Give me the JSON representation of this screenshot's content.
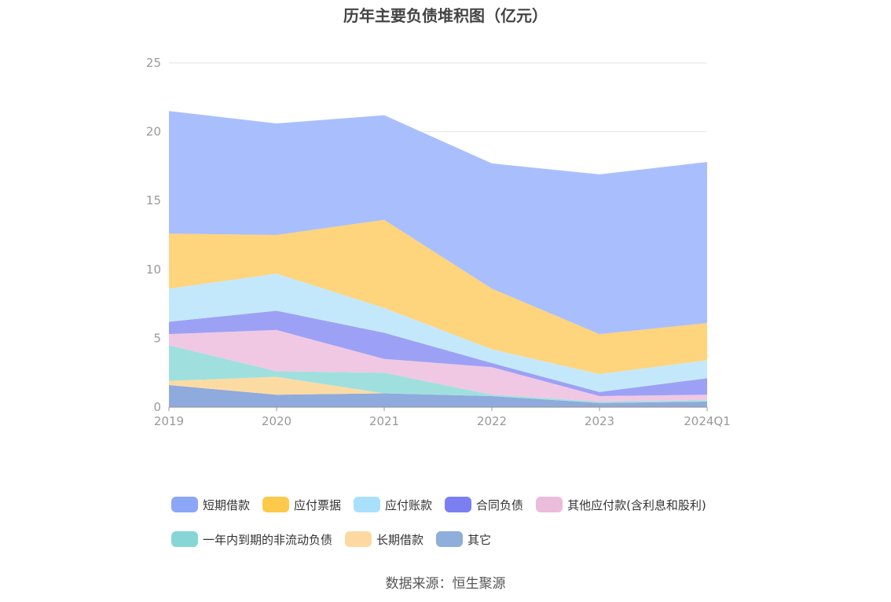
{
  "chart_data": {
    "type": "area",
    "stacked": true,
    "title": "历年主要负债堆积图（亿元）",
    "categories": [
      "2019",
      "2020",
      "2021",
      "2022",
      "2023",
      "2024Q1"
    ],
    "ylim": [
      0,
      25
    ],
    "yticks": [
      0,
      5,
      10,
      15,
      20,
      25
    ],
    "grid": true,
    "legend_position": "bottom",
    "series": [
      {
        "name": "其它",
        "color": "#8faadc",
        "values": [
          1.6,
          0.9,
          1.0,
          0.8,
          0.3,
          0.4
        ]
      },
      {
        "name": "长期借款",
        "color": "#fcdba3",
        "values": [
          0.3,
          1.3,
          0.0,
          0.0,
          0.0,
          0.0
        ]
      },
      {
        "name": "一年内到期的非流动负债",
        "color": "#9fe0df",
        "values": [
          2.6,
          0.4,
          1.5,
          0.1,
          0.1,
          0.1
        ]
      },
      {
        "name": "其他应付款(含利息和股利)",
        "color": "#f0c8e3",
        "values": [
          0.8,
          3.0,
          1.0,
          2.0,
          0.4,
          0.4
        ]
      },
      {
        "name": "合同负债",
        "color": "#9da1f5",
        "values": [
          0.9,
          1.4,
          1.9,
          0.3,
          0.3,
          1.2
        ]
      },
      {
        "name": "应付账款",
        "color": "#c4e8fb",
        "values": [
          2.4,
          2.7,
          1.8,
          1.0,
          1.3,
          1.3
        ]
      },
      {
        "name": "应付票据",
        "color": "#fed47c",
        "values": [
          4.0,
          2.8,
          6.4,
          4.4,
          2.9,
          2.7
        ]
      },
      {
        "name": "短期借款",
        "color": "#a9bffd",
        "values": [
          8.9,
          8.1,
          7.6,
          9.1,
          11.6,
          11.7
        ]
      }
    ],
    "legend": [
      {
        "name": "短期借款",
        "color": "#8ca6f8"
      },
      {
        "name": "应付票据",
        "color": "#fdc94a"
      },
      {
        "name": "应付账款",
        "color": "#a9e0fb"
      },
      {
        "name": "合同负债",
        "color": "#7b7ff2"
      },
      {
        "name": "其他应付款(含利息和股利)",
        "color": "#ecbcdc"
      },
      {
        "name": "一年内到期的非流动负债",
        "color": "#86d6d6"
      },
      {
        "name": "长期借款",
        "color": "#fdd8a0"
      },
      {
        "name": "其它",
        "color": "#8eaedb"
      }
    ]
  },
  "source": "数据来源：恒生聚源"
}
